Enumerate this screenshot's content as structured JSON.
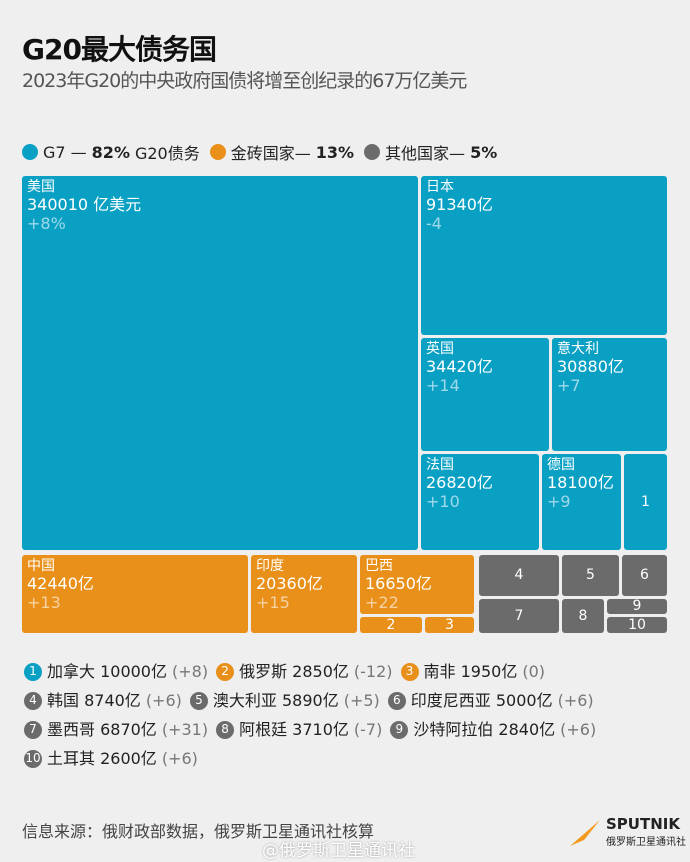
{
  "title": "G20最大债务国",
  "subtitle": "2023年G20的中央政府国债将增至创纪录的67万亿美元",
  "colors": {
    "g7": "#0aa0c4",
    "brics": "#e8901a",
    "other": "#6b6b6b"
  },
  "legend": [
    {
      "label": "G7 — ",
      "bold": "82%",
      "rest": "G20债务",
      "color": "#0aa0c4"
    },
    {
      "label": "金砖国家— ",
      "bold": "13%",
      "rest": "",
      "color": "#e8901a"
    },
    {
      "label": "其他国家— ",
      "bold": "5%",
      "rest": "",
      "color": "#6b6b6b"
    }
  ],
  "chart_data": {
    "type": "treemap",
    "title": "G20最大债务国",
    "unit": "亿美元",
    "tiles": [
      {
        "name": "美国",
        "value": "340010 亿美元",
        "change": "+8%",
        "group": "g7"
      },
      {
        "name": "日本",
        "value": "91340亿",
        "change": "-4",
        "group": "g7"
      },
      {
        "name": "英国",
        "value": "34420亿",
        "change": "+14",
        "group": "g7"
      },
      {
        "name": "意大利",
        "value": "30880亿",
        "change": "+7",
        "group": "g7"
      },
      {
        "name": "法国",
        "value": "26820亿",
        "change": "+10",
        "group": "g7"
      },
      {
        "name": "德国",
        "value": "18100亿",
        "change": "+9",
        "group": "g7"
      },
      {
        "name": "1",
        "group": "g7"
      },
      {
        "name": "中国",
        "value": "42440亿",
        "change": "+13",
        "group": "brics"
      },
      {
        "name": "印度",
        "value": "20360亿",
        "change": "+15",
        "group": "brics"
      },
      {
        "name": "巴西",
        "value": "16650亿",
        "change": "+22",
        "group": "brics"
      },
      {
        "name": "2",
        "group": "brics"
      },
      {
        "name": "3",
        "group": "brics"
      },
      {
        "name": "4",
        "group": "other"
      },
      {
        "name": "5",
        "group": "other"
      },
      {
        "name": "6",
        "group": "other"
      },
      {
        "name": "7",
        "group": "other"
      },
      {
        "name": "8",
        "group": "other"
      },
      {
        "name": "9",
        "group": "other"
      },
      {
        "name": "10",
        "group": "other"
      }
    ]
  },
  "numbered": [
    {
      "n": "1",
      "name": "加拿大 10000亿",
      "change": "(+8)",
      "group": "g7"
    },
    {
      "n": "2",
      "name": "俄罗斯 2850亿",
      "change": "(-12)",
      "group": "brics"
    },
    {
      "n": "3",
      "name": "南非 1950亿",
      "change": "(0)",
      "group": "brics"
    },
    {
      "n": "4",
      "name": "韩国 8740亿",
      "change": "(+6)",
      "group": "other"
    },
    {
      "n": "5",
      "name": "澳大利亚 5890亿",
      "change": "(+5)",
      "group": "other"
    },
    {
      "n": "6",
      "name": "印度尼西亚 5000亿",
      "change": "(+6)",
      "group": "other"
    },
    {
      "n": "7",
      "name": "墨西哥 6870亿",
      "change": "(+31)",
      "group": "other"
    },
    {
      "n": "8",
      "name": "阿根廷 3710亿",
      "change": "(-7)",
      "group": "other"
    },
    {
      "n": "9",
      "name": "沙特阿拉伯 2840亿",
      "change": "(+6)",
      "group": "other"
    },
    {
      "n": "10",
      "name": "土耳其 2600亿",
      "change": "(+6)",
      "group": "other"
    }
  ],
  "source": "信息来源：俄财政部数据，俄罗斯卫星通讯社核算",
  "watermark": "@俄罗斯卫星通讯社",
  "logo": {
    "brand": "SPUTNIK",
    "sub": "俄罗斯卫星通讯社"
  }
}
